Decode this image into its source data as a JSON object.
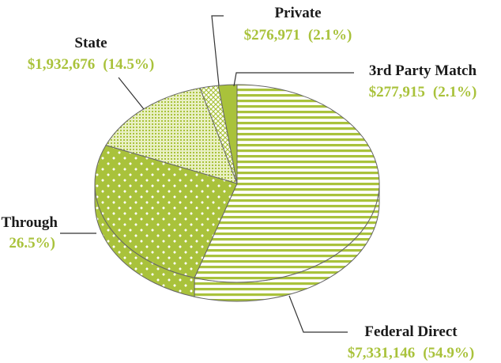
{
  "chart_data": {
    "type": "pie",
    "categories": [
      "Federal Direct",
      "Through",
      "State",
      "Private",
      "3rd Party Match"
    ],
    "values": [
      54.9,
      26.5,
      14.5,
      2.1,
      2.1
    ],
    "value_labels": [
      "(54.9%)",
      "26.5%)",
      "(14.5%)",
      "(2.1%)",
      "(2.1%)"
    ],
    "amounts": [
      7331146,
      null,
      1932676,
      276971,
      277915
    ],
    "amount_labels": [
      "$7,331,146",
      null,
      "$1,932,676",
      "$276,971",
      "$277,915"
    ],
    "color": "#a9c23b"
  }
}
